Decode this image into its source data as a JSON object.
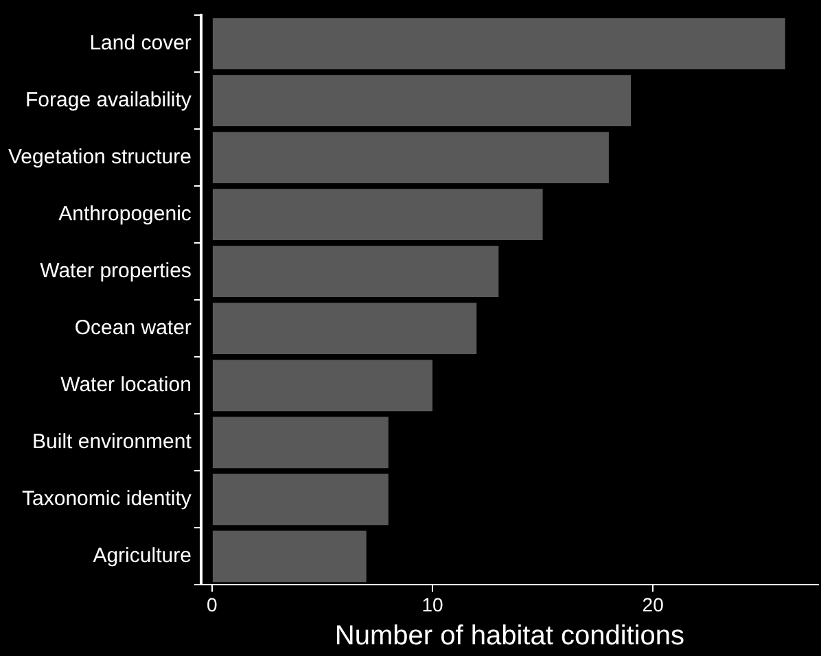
{
  "chart_data": {
    "type": "bar",
    "orientation": "horizontal",
    "xlabel": "Number of habitat conditions",
    "categories": [
      "Land cover",
      "Forage availability",
      "Vegetation structure",
      "Anthropogenic",
      "Water properties",
      "Ocean water",
      "Water location",
      "Built environment",
      "Taxonomic identity",
      "Agriculture"
    ],
    "values": [
      26,
      19,
      18,
      15,
      13,
      12,
      10,
      8,
      8,
      7
    ],
    "color": "#595959",
    "xlim": [
      -0.5,
      27.5
    ],
    "xticks": [
      0,
      10,
      20
    ],
    "grid": false,
    "legend": false
  }
}
